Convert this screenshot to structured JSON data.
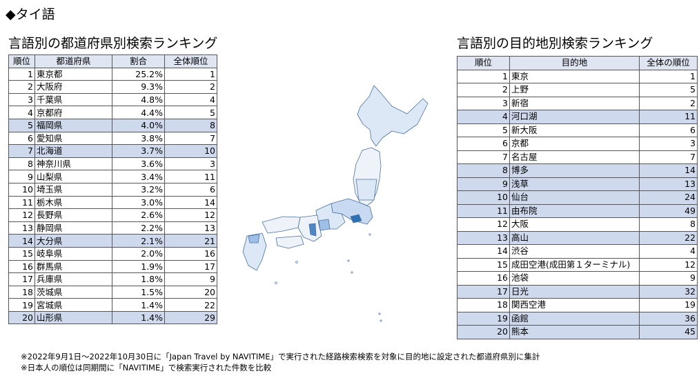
{
  "heading": "◆タイ語",
  "left": {
    "title": "言語別の都道府県別検索ランキング",
    "columns": [
      "順位",
      "都道府県",
      "割合",
      "全体順位"
    ],
    "rows": [
      {
        "rank": "1",
        "name": "東京都",
        "share": "25.2%",
        "overall": "1",
        "hl": false
      },
      {
        "rank": "2",
        "name": "大阪府",
        "share": "9.3%",
        "overall": "2",
        "hl": false
      },
      {
        "rank": "3",
        "name": "千葉県",
        "share": "4.8%",
        "overall": "4",
        "hl": false
      },
      {
        "rank": "4",
        "name": "京都府",
        "share": "4.4%",
        "overall": "5",
        "hl": false
      },
      {
        "rank": "5",
        "name": "福岡県",
        "share": "4.0%",
        "overall": "8",
        "hl": true
      },
      {
        "rank": "6",
        "name": "愛知県",
        "share": "3.8%",
        "overall": "7",
        "hl": false
      },
      {
        "rank": "7",
        "name": "北海道",
        "share": "3.7%",
        "overall": "10",
        "hl": true
      },
      {
        "rank": "8",
        "name": "神奈川県",
        "share": "3.6%",
        "overall": "3",
        "hl": false
      },
      {
        "rank": "9",
        "name": "山梨県",
        "share": "3.4%",
        "overall": "11",
        "hl": false
      },
      {
        "rank": "10",
        "name": "埼玉県",
        "share": "3.2%",
        "overall": "6",
        "hl": false
      },
      {
        "rank": "11",
        "name": "栃木県",
        "share": "3.0%",
        "overall": "14",
        "hl": false
      },
      {
        "rank": "12",
        "name": "長野県",
        "share": "2.6%",
        "overall": "12",
        "hl": false
      },
      {
        "rank": "13",
        "name": "静岡県",
        "share": "2.2%",
        "overall": "13",
        "hl": false
      },
      {
        "rank": "14",
        "name": "大分県",
        "share": "2.1%",
        "overall": "21",
        "hl": true
      },
      {
        "rank": "15",
        "name": "岐阜県",
        "share": "2.0%",
        "overall": "16",
        "hl": false
      },
      {
        "rank": "16",
        "name": "群馬県",
        "share": "1.9%",
        "overall": "17",
        "hl": false
      },
      {
        "rank": "17",
        "name": "兵庫県",
        "share": "1.8%",
        "overall": "9",
        "hl": false
      },
      {
        "rank": "18",
        "name": "茨城県",
        "share": "1.5%",
        "overall": "20",
        "hl": false
      },
      {
        "rank": "19",
        "name": "宮城県",
        "share": "1.4%",
        "overall": "22",
        "hl": false
      },
      {
        "rank": "20",
        "name": "山形県",
        "share": "1.4%",
        "overall": "29",
        "hl": true
      }
    ]
  },
  "right": {
    "title": "言語別の目的地別検索ランキング",
    "columns": [
      "順位",
      "目的地",
      "全体の順位"
    ],
    "rows": [
      {
        "rank": "1",
        "name": "東京",
        "overall": "1",
        "hl": false
      },
      {
        "rank": "2",
        "name": "上野",
        "overall": "5",
        "hl": false
      },
      {
        "rank": "3",
        "name": "新宿",
        "overall": "2",
        "hl": false
      },
      {
        "rank": "4",
        "name": "河口湖",
        "overall": "11",
        "hl": true
      },
      {
        "rank": "5",
        "name": "新大阪",
        "overall": "6",
        "hl": false
      },
      {
        "rank": "6",
        "name": "京都",
        "overall": "3",
        "hl": false
      },
      {
        "rank": "7",
        "name": "名古屋",
        "overall": "7",
        "hl": false
      },
      {
        "rank": "8",
        "name": "博多",
        "overall": "14",
        "hl": true
      },
      {
        "rank": "9",
        "name": "浅草",
        "overall": "13",
        "hl": true
      },
      {
        "rank": "10",
        "name": "仙台",
        "overall": "24",
        "hl": true
      },
      {
        "rank": "11",
        "name": "由布院",
        "overall": "49",
        "hl": true
      },
      {
        "rank": "12",
        "name": "大阪",
        "overall": "8",
        "hl": false
      },
      {
        "rank": "13",
        "name": "高山",
        "overall": "22",
        "hl": true
      },
      {
        "rank": "14",
        "name": "渋谷",
        "overall": "4",
        "hl": false
      },
      {
        "rank": "15",
        "name": "成田空港(成田第１ターミナル)",
        "overall": "12",
        "hl": false
      },
      {
        "rank": "16",
        "name": "池袋",
        "overall": "9",
        "hl": false
      },
      {
        "rank": "17",
        "name": "日光",
        "overall": "32",
        "hl": true
      },
      {
        "rank": "18",
        "name": "関西空港",
        "overall": "19",
        "hl": false
      },
      {
        "rank": "19",
        "name": "函館",
        "overall": "36",
        "hl": true
      },
      {
        "rank": "20",
        "name": "熊本",
        "overall": "45",
        "hl": true
      }
    ]
  },
  "notes": [
    "※2022年9月1日～2022年10月30日に「Japan Travel by NAVITIME」で実行された経路検索検索を対象に目的地に設定された都道府県別に集計",
    "※日本人の順位は同期間に「NAVITIME」で検索実行された件数を比較"
  ],
  "colors": {
    "highlight": "#cfd9ee",
    "header": "#dfe6f2",
    "map_light": "#dce8f6",
    "map_mid": "#9fc0e6",
    "map_dark": "#2f6fb4"
  }
}
